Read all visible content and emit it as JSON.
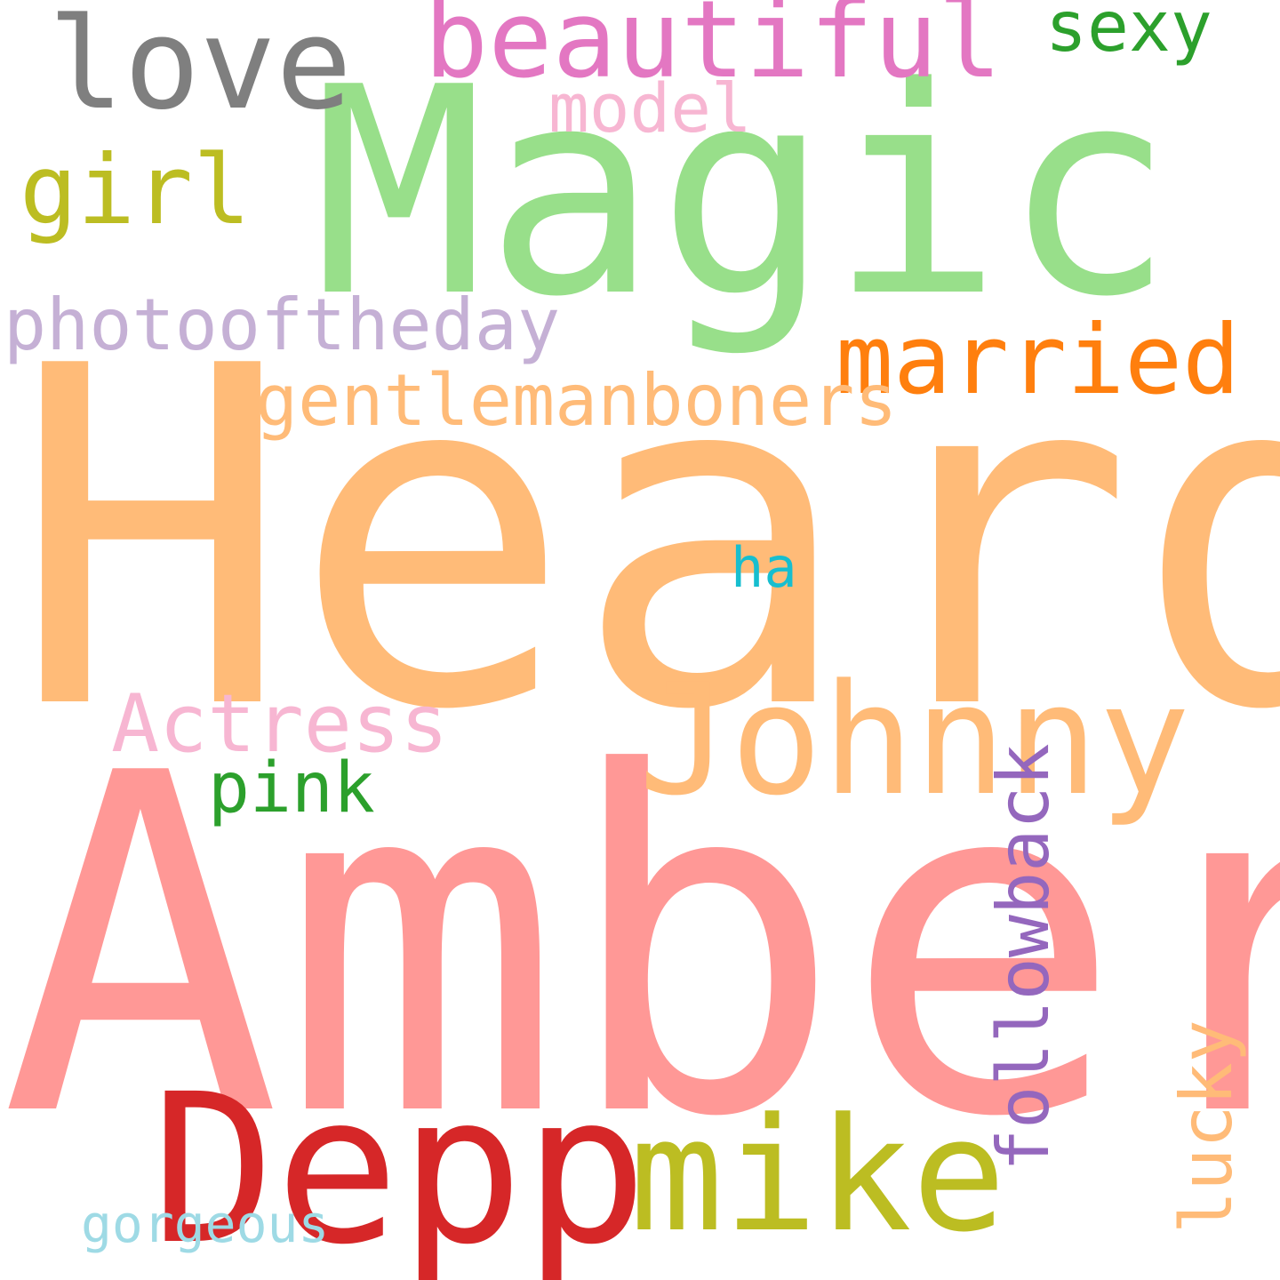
{
  "words": {
    "heard": {
      "text": "Heard",
      "color": "#ffbb78"
    },
    "amber": {
      "text": "Amber",
      "color": "#ff9896"
    },
    "magic": {
      "text": "Magic",
      "color": "#98df8a"
    },
    "johnny": {
      "text": "Johnny",
      "color": "#ffbb78"
    },
    "depp": {
      "text": "Depp",
      "color": "#d62728"
    },
    "mike": {
      "text": "mike",
      "color": "#bcbd22"
    },
    "love": {
      "text": "love",
      "color": "#7f7f7f"
    },
    "beautiful": {
      "text": "beautiful",
      "color": "#e377c2"
    },
    "sexy": {
      "text": "sexy",
      "color": "#2ca02c"
    },
    "model": {
      "text": "model",
      "color": "#f7b6d2"
    },
    "girl": {
      "text": "girl",
      "color": "#bcbd22"
    },
    "photooftheday": {
      "text": "photooftheday",
      "color": "#c5b0d5"
    },
    "married": {
      "text": "married",
      "color": "#ff7f0e"
    },
    "gentlemanboners": {
      "text": "gentlemanboners",
      "color": "#ffbb78"
    },
    "ha": {
      "text": "ha",
      "color": "#17becf"
    },
    "actress": {
      "text": "Actress",
      "color": "#f7b6d2"
    },
    "pink": {
      "text": "pink",
      "color": "#2ca02c"
    },
    "followback": {
      "text": "followback",
      "color": "#9467bd",
      "orientation": "vertical"
    },
    "lucky": {
      "text": "lucky",
      "color": "#ffbb78",
      "orientation": "vertical"
    },
    "gorgeous": {
      "text": "gorgeous",
      "color": "#9edae5"
    }
  }
}
